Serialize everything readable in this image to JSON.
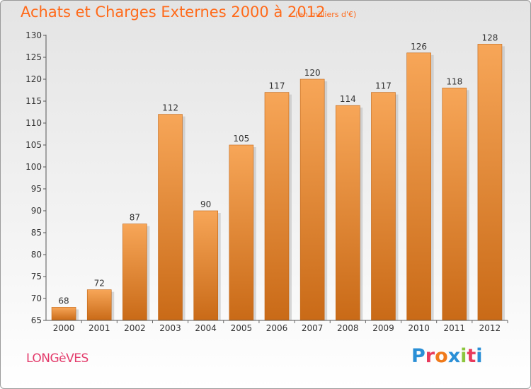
{
  "title": "Achats et Charges Externes 2000 à 2012",
  "subtitle": "(en milliers d'€)",
  "commune": "LONGèVES",
  "logo": {
    "text": "Proxiti",
    "colors": [
      "#2a8fd6",
      "#e83a5c",
      "#f07a1a",
      "#2a8fd6",
      "#8cc63e",
      "#e83a5c",
      "#2a8fd6"
    ]
  },
  "colors": {
    "title": "#ff6a1a",
    "bar_top": "#f7a658",
    "bar_bottom": "#c96a17",
    "commune": "#e33b6b"
  },
  "chart_data": {
    "type": "bar",
    "categories": [
      "2000",
      "2001",
      "2002",
      "2003",
      "2004",
      "2005",
      "2006",
      "2007",
      "2008",
      "2009",
      "2010",
      "2011",
      "2012"
    ],
    "values": [
      68,
      72,
      87,
      112,
      90,
      105,
      117,
      120,
      114,
      117,
      126,
      118,
      128
    ],
    "title": "Achats et Charges Externes 2000 à 2012",
    "subtitle": "(en milliers d'€)",
    "xlabel": "",
    "ylabel": "",
    "ylim": [
      65,
      130
    ],
    "yticks": [
      65,
      70,
      75,
      80,
      85,
      90,
      95,
      100,
      105,
      110,
      115,
      120,
      125,
      130
    ],
    "grid": false,
    "data_labels": true
  }
}
